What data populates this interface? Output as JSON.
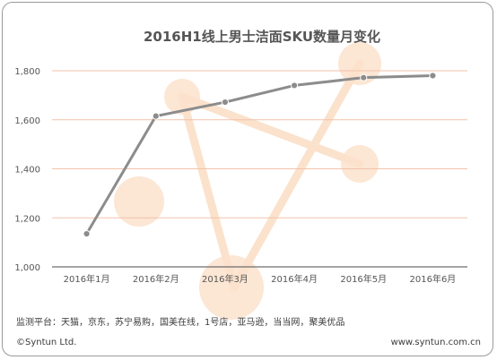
{
  "chart_data": {
    "type": "line",
    "title": "2016H1线上男士洁面SKU数量月变化",
    "categories": [
      "2016年1月",
      "2016年2月",
      "2016年3月",
      "2016年4月",
      "2016年5月",
      "2016年6月"
    ],
    "series": [
      {
        "values": [
          1135,
          1615,
          1672,
          1740,
          1772,
          1780
        ]
      }
    ],
    "ylim": [
      1000,
      1800
    ],
    "yticks": [
      "1,000",
      "1,200",
      "1,400",
      "1,600",
      "1,800"
    ],
    "grid": true,
    "xlabel": "",
    "ylabel": "",
    "colors": {
      "line": "#8c8c8c",
      "grid": "#f2c2aa",
      "axis": "#6e6e6e",
      "decor": "#fbe2cc"
    }
  },
  "footer": {
    "source": "监测平台：天猫，京东，苏宁易购，国美在线，1号店，亚马逊，当当网，聚美优品",
    "copyright": "©Syntun Ltd.",
    "website": "www.syntun.com.cn"
  }
}
